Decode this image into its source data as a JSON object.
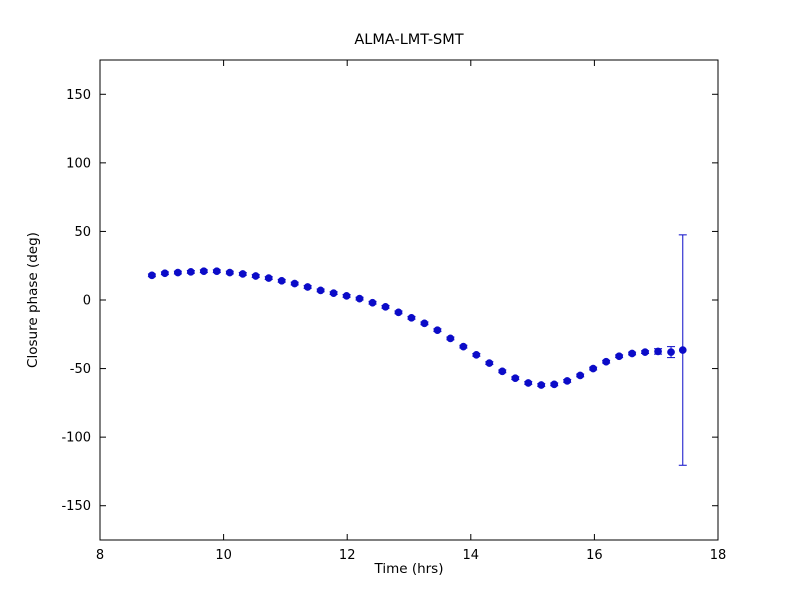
{
  "figure": {
    "background": "#ffffff",
    "frame_color": "#000000"
  },
  "chart_data": {
    "type": "scatter",
    "title": "ALMA-LMT-SMT",
    "xlabel": "Time (hrs)",
    "ylabel": "Closure phase (deg)",
    "xlim": [
      8,
      18
    ],
    "ylim": [
      -175,
      175
    ],
    "xticks": [
      8,
      10,
      12,
      14,
      16,
      18
    ],
    "yticks": [
      -150,
      -100,
      -50,
      0,
      50,
      100,
      150
    ],
    "grid": false,
    "legend": "none",
    "marker": "filled-circle",
    "marker_color": "#0b0bc8",
    "errorbar_color": "#0b0bc8",
    "series": [
      {
        "name": "closure-phase",
        "x": [
          8.84,
          9.05,
          9.26,
          9.47,
          9.68,
          9.89,
          10.1,
          10.31,
          10.52,
          10.73,
          10.94,
          11.15,
          11.36,
          11.57,
          11.78,
          11.99,
          12.2,
          12.41,
          12.62,
          12.83,
          13.04,
          13.25,
          13.46,
          13.67,
          13.88,
          14.09,
          14.3,
          14.51,
          14.72,
          14.93,
          15.14,
          15.35,
          15.56,
          15.77,
          15.98,
          16.19,
          16.4,
          16.61,
          16.82,
          17.03,
          17.24,
          17.43
        ],
        "y": [
          18,
          19.5,
          20,
          20.5,
          21,
          21,
          20,
          19,
          17.5,
          16,
          14,
          12,
          9.5,
          7,
          5,
          3,
          1,
          -2,
          -5,
          -9,
          -13,
          -17,
          -22,
          -28,
          -34,
          -40,
          -46,
          -52,
          -57,
          -60.5,
          -62,
          -61.5,
          -59,
          -55,
          -50,
          -45,
          -41,
          -39,
          -38,
          -37.5,
          -38,
          -36.5
        ],
        "yerr": [
          1,
          1,
          1,
          1,
          1,
          1,
          1,
          1,
          1,
          1,
          1,
          1,
          1,
          1,
          1,
          1,
          1,
          1,
          1,
          1,
          1,
          1,
          1,
          1,
          1,
          1,
          1,
          1,
          1,
          1,
          1,
          1,
          1,
          1,
          1,
          1,
          1,
          1,
          1,
          2,
          4,
          84
        ]
      }
    ]
  }
}
